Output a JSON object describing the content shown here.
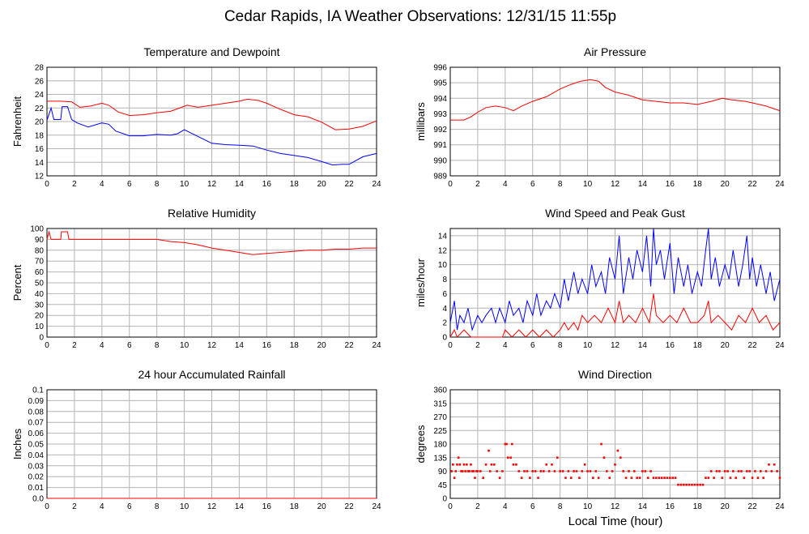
{
  "title": "Cedar Rapids, IA Weather Observations: 12/31/15 11:55p",
  "x_label": "Local Time (hour)",
  "x_ticks": [
    0,
    2,
    4,
    6,
    8,
    10,
    12,
    14,
    16,
    18,
    20,
    22,
    24
  ],
  "colors": {
    "red": "#ff0000",
    "blue": "#0000ff",
    "grid": "#b4b4b4"
  },
  "chart_data": [
    {
      "id": "temp",
      "type": "line",
      "title": "Temperature and Dewpoint",
      "ylabel": "Fahrenheit",
      "xlim": [
        0,
        24
      ],
      "ylim": [
        12,
        28
      ],
      "yticks": [
        "12",
        "14",
        "16",
        "18",
        "20",
        "22",
        "24",
        "26",
        "28"
      ],
      "series": [
        {
          "color": "#ff0000",
          "x": [
            0,
            1,
            1.8,
            2.4,
            3.2,
            4,
            4.5,
            5.2,
            6,
            7,
            8,
            9,
            9.8,
            10.2,
            11,
            12,
            13,
            14,
            14.6,
            15.4,
            16,
            17,
            18,
            19,
            20,
            21,
            22,
            23,
            24
          ],
          "y": [
            23.0,
            23.0,
            22.9,
            22.1,
            22.3,
            22.7,
            22.4,
            21.4,
            20.9,
            21.0,
            21.3,
            21.5,
            22.1,
            22.4,
            22.1,
            22.4,
            22.7,
            23.0,
            23.3,
            23.1,
            22.7,
            21.8,
            21.0,
            20.7,
            19.9,
            18.8,
            18.9,
            19.3,
            20.1
          ]
        },
        {
          "color": "#0000ff",
          "x": [
            0,
            0.3,
            0.5,
            0.8,
            1,
            1.1,
            1.5,
            1.8,
            2.2,
            3,
            4,
            4.5,
            5,
            6,
            7,
            8,
            9,
            9.5,
            10,
            11,
            12,
            13,
            14,
            15,
            16,
            17,
            18,
            19,
            20,
            20.8,
            21.5,
            22,
            23,
            24
          ],
          "y": [
            20.2,
            22.0,
            20.3,
            20.3,
            20.3,
            22.2,
            22.2,
            20.3,
            19.8,
            19.2,
            19.8,
            19.6,
            18.6,
            17.9,
            17.9,
            18.1,
            18.0,
            18.2,
            18.8,
            17.8,
            16.8,
            16.6,
            16.5,
            16.4,
            15.8,
            15.3,
            15.0,
            14.7,
            14.1,
            13.6,
            13.7,
            13.7,
            14.8,
            15.3
          ]
        }
      ]
    },
    {
      "id": "pres",
      "type": "line",
      "title": "Air Pressure",
      "ylabel": "millibars",
      "xlim": [
        0,
        24
      ],
      "ylim": [
        989,
        996
      ],
      "yticks": [
        "989",
        "990",
        "991",
        "992",
        "993",
        "994",
        "995",
        "996"
      ],
      "series": [
        {
          "color": "#ff0000",
          "x": [
            0,
            1,
            1.5,
            2,
            2.6,
            3.3,
            4,
            4.6,
            5.2,
            6,
            7,
            8,
            8.8,
            9.5,
            10.2,
            10.8,
            11.3,
            12,
            13,
            14,
            15,
            16,
            17,
            18,
            19,
            19.8,
            20.5,
            21.5,
            22.5,
            23,
            24
          ],
          "y": [
            992.6,
            992.6,
            992.8,
            993.1,
            993.4,
            993.5,
            993.4,
            993.2,
            993.5,
            993.8,
            994.1,
            994.6,
            994.9,
            995.1,
            995.2,
            995.1,
            994.7,
            994.4,
            994.2,
            993.9,
            993.8,
            993.7,
            993.7,
            993.6,
            993.8,
            994.0,
            993.9,
            993.8,
            993.6,
            993.5,
            993.2
          ]
        }
      ]
    },
    {
      "id": "rh",
      "type": "line",
      "title": "Relative Humidity",
      "ylabel": "Percent",
      "xlim": [
        0,
        24
      ],
      "ylim": [
        0,
        100
      ],
      "yticks": [
        "0",
        "10",
        "20",
        "30",
        "40",
        "50",
        "60",
        "70",
        "80",
        "90",
        "100"
      ],
      "series": [
        {
          "color": "#ff0000",
          "x": [
            0,
            0.15,
            0.3,
            0.5,
            1,
            1.05,
            1.5,
            1.6,
            2,
            4,
            6,
            8,
            8.5,
            9,
            10,
            11,
            12,
            13,
            14,
            15,
            16,
            17,
            18,
            19,
            20,
            21,
            22,
            23,
            24
          ],
          "y": [
            90,
            97,
            90,
            90,
            90,
            97,
            97,
            90,
            90,
            90,
            90,
            90,
            89,
            88,
            87,
            85,
            82,
            80,
            78,
            76,
            77,
            78,
            79,
            80,
            80,
            81,
            81,
            82,
            82
          ]
        }
      ]
    },
    {
      "id": "wind",
      "type": "line",
      "title": "Wind Speed and Peak Gust",
      "ylabel": "miles/hour",
      "xlim": [
        0,
        24
      ],
      "ylim": [
        0,
        15
      ],
      "yticks": [
        "0",
        "2",
        "4",
        "6",
        "8",
        "10",
        "12",
        "14"
      ],
      "series": [
        {
          "color": "#0000ff",
          "x": [
            0,
            0.3,
            0.5,
            0.7,
            1,
            1.3,
            1.6,
            2,
            2.3,
            2.6,
            3,
            3.3,
            3.6,
            4,
            4.3,
            4.6,
            5,
            5.3,
            5.6,
            6,
            6.3,
            6.6,
            7,
            7.3,
            7.6,
            8,
            8.3,
            8.6,
            9,
            9.3,
            9.6,
            10,
            10.3,
            10.6,
            11,
            11.3,
            11.6,
            12,
            12.3,
            12.6,
            13,
            13.3,
            13.6,
            14,
            14.3,
            14.6,
            14.8,
            15,
            15.3,
            15.6,
            16,
            16.3,
            16.6,
            17,
            17.3,
            17.6,
            18,
            18.3,
            18.6,
            18.8,
            19,
            19.3,
            19.6,
            20,
            20.3,
            20.6,
            21,
            21.3,
            21.6,
            21.8,
            22,
            22.3,
            22.6,
            23,
            23.3,
            23.6,
            24
          ],
          "y": [
            2,
            5,
            1,
            3,
            2,
            4,
            1,
            3,
            2,
            3,
            4,
            2,
            4,
            2,
            5,
            3,
            4,
            2,
            5,
            3,
            6,
            3,
            5,
            4,
            6,
            4,
            8,
            5,
            9,
            6,
            8,
            6,
            10,
            7,
            9,
            6,
            11,
            8,
            14,
            6,
            11,
            8,
            12,
            9,
            14,
            7,
            15,
            10,
            12,
            8,
            13,
            6,
            11,
            7,
            10,
            6,
            9,
            7,
            12,
            15,
            8,
            11,
            7,
            10,
            8,
            12,
            7,
            10,
            14,
            8,
            11,
            7,
            10,
            6,
            9,
            5,
            8
          ]
        },
        {
          "color": "#ff0000",
          "x": [
            0,
            0.3,
            0.5,
            1,
            1.5,
            2,
            2.5,
            3,
            3.5,
            3.8,
            4,
            4.5,
            5,
            5.5,
            6,
            6.5,
            7,
            7.5,
            8,
            8.3,
            8.6,
            9,
            9.3,
            9.6,
            10,
            10.5,
            11,
            11.5,
            12,
            12.3,
            12.6,
            13,
            13.5,
            14,
            14.5,
            14.8,
            15,
            15.5,
            16,
            16.5,
            17,
            17.5,
            18,
            18.5,
            18.8,
            19,
            19.5,
            20,
            20.5,
            21,
            21.5,
            22,
            22.5,
            23,
            23.5,
            24
          ],
          "y": [
            0,
            1,
            0,
            1,
            0,
            0,
            0,
            0,
            0,
            0,
            1,
            0,
            1,
            0,
            1,
            0,
            1,
            0,
            1,
            2,
            1,
            2,
            1,
            3,
            2,
            3,
            2,
            4,
            2,
            5,
            2,
            3,
            2,
            4,
            2,
            6,
            3,
            2,
            3,
            2,
            4,
            2,
            2,
            3,
            5,
            2,
            3,
            2,
            1,
            3,
            2,
            4,
            2,
            3,
            1,
            2
          ]
        }
      ]
    },
    {
      "id": "rain",
      "type": "line",
      "title": "24 hour Accumulated Rainfall",
      "ylabel": "Inches",
      "xlim": [
        0,
        24
      ],
      "ylim": [
        0,
        0.1
      ],
      "yticks": [
        "0.0",
        "0.01",
        "0.02",
        "0.03",
        "0.04",
        "0.05",
        "0.06",
        "0.07",
        "0.08",
        "0.09",
        "0.1"
      ],
      "series": [
        {
          "color": "#ff0000",
          "x": [
            0,
            24
          ],
          "y": [
            0,
            0
          ]
        }
      ]
    },
    {
      "id": "dir",
      "type": "scatter",
      "title": "Wind Direction",
      "ylabel": "degrees",
      "xlim": [
        0,
        24
      ],
      "ylim": [
        0,
        360
      ],
      "yticks": [
        "0",
        "45",
        "90",
        "135",
        "180",
        "225",
        "270",
        "315",
        "360"
      ],
      "series": [
        {
          "color": "#ff0000",
          "x": [
            0.1,
            0.2,
            0.3,
            0.4,
            0.5,
            0.6,
            0.7,
            0.8,
            0.9,
            1.0,
            1.1,
            1.2,
            1.3,
            1.4,
            1.5,
            1.6,
            1.7,
            1.8,
            1.9,
            2.0,
            2.2,
            2.4,
            2.6,
            2.8,
            2.9,
            3.0,
            3.2,
            3.4,
            3.6,
            3.8,
            4.0,
            4.1,
            4.2,
            4.4,
            4.5,
            4.6,
            4.8,
            5.0,
            5.2,
            5.4,
            5.6,
            5.8,
            6.0,
            6.2,
            6.4,
            6.6,
            6.8,
            7.0,
            7.2,
            7.4,
            7.6,
            7.8,
            8.0,
            8.2,
            8.4,
            8.6,
            8.8,
            9.0,
            9.2,
            9.4,
            9.6,
            9.8,
            10.0,
            10.2,
            10.4,
            10.6,
            10.8,
            11.0,
            11.2,
            11.4,
            11.6,
            11.8,
            12.0,
            12.2,
            12.4,
            12.6,
            12.8,
            13.0,
            13.2,
            13.4,
            13.6,
            13.8,
            14.0,
            14.2,
            14.4,
            14.6,
            14.8,
            15.0,
            15.2,
            15.4,
            15.6,
            15.8,
            16.0,
            16.2,
            16.4,
            16.6,
            16.8,
            17.0,
            17.2,
            17.4,
            17.6,
            17.8,
            18.0,
            18.2,
            18.4,
            18.6,
            18.8,
            19.0,
            19.2,
            19.4,
            19.6,
            19.8,
            20.0,
            20.2,
            20.4,
            20.6,
            20.8,
            21.0,
            21.2,
            21.4,
            21.6,
            21.8,
            22.0,
            22.2,
            22.4,
            22.6,
            22.8,
            23.0,
            23.2,
            23.4,
            23.6,
            23.8,
            24.0
          ],
          "y": [
            90,
            112,
            68,
            90,
            112,
            135,
            112,
            90,
            90,
            112,
            90,
            112,
            90,
            90,
            112,
            90,
            90,
            68,
            90,
            90,
            90,
            68,
            112,
            158,
            90,
            112,
            112,
            90,
            68,
            90,
            180,
            180,
            135,
            135,
            180,
            112,
            112,
            90,
            68,
            90,
            90,
            68,
            90,
            90,
            68,
            90,
            90,
            112,
            90,
            112,
            90,
            135,
            90,
            90,
            68,
            90,
            68,
            90,
            90,
            68,
            90,
            112,
            90,
            90,
            68,
            90,
            68,
            180,
            135,
            90,
            68,
            90,
            112,
            158,
            135,
            90,
            68,
            90,
            68,
            90,
            68,
            68,
            90,
            90,
            68,
            90,
            68,
            68,
            68,
            68,
            68,
            68,
            68,
            68,
            68,
            45,
            45,
            45,
            45,
            45,
            45,
            45,
            45,
            45,
            45,
            68,
            68,
            90,
            68,
            90,
            90,
            68,
            90,
            90,
            68,
            90,
            68,
            90,
            90,
            68,
            90,
            90,
            68,
            90,
            68,
            90,
            68,
            90,
            112,
            90,
            112,
            90,
            68
          ]
        }
      ]
    }
  ]
}
